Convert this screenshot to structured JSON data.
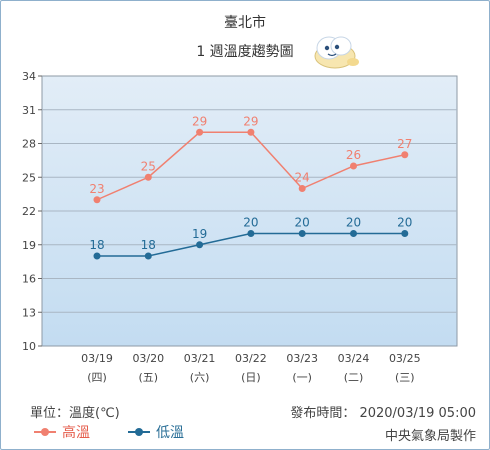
{
  "title": {
    "city": "臺北市",
    "subtitle": "1 週溫度趨勢圖"
  },
  "footer": {
    "unit": "單位：溫度(℃)",
    "issued": "發布時間： 2020/03/19 05:00",
    "agency": "中央氣象局製作"
  },
  "legend": {
    "high": "高溫",
    "low": "低溫"
  },
  "colors": {
    "high": "#f08070",
    "low": "#236b96",
    "plot_top": "#e2edf7",
    "plot_bottom": "#c3dcf1",
    "grid": "#a9b6c3"
  },
  "chart_data": {
    "type": "line",
    "categories": [
      "03/19",
      "03/20",
      "03/21",
      "03/22",
      "03/23",
      "03/24",
      "03/25"
    ],
    "weekdays": [
      "(四)",
      "(五)",
      "(六)",
      "(日)",
      "(一)",
      "(二)",
      "(三)"
    ],
    "series": [
      {
        "name": "高溫",
        "key": "high",
        "values": [
          23,
          25,
          29,
          29,
          24,
          26,
          27
        ]
      },
      {
        "name": "低溫",
        "key": "low",
        "values": [
          18,
          18,
          19,
          20,
          20,
          20,
          20
        ]
      }
    ],
    "ylim": [
      10,
      34
    ],
    "yticks": [
      10,
      13,
      16,
      19,
      22,
      25,
      28,
      31,
      34
    ],
    "grid": true,
    "ylabel": "",
    "xlabel": ""
  }
}
